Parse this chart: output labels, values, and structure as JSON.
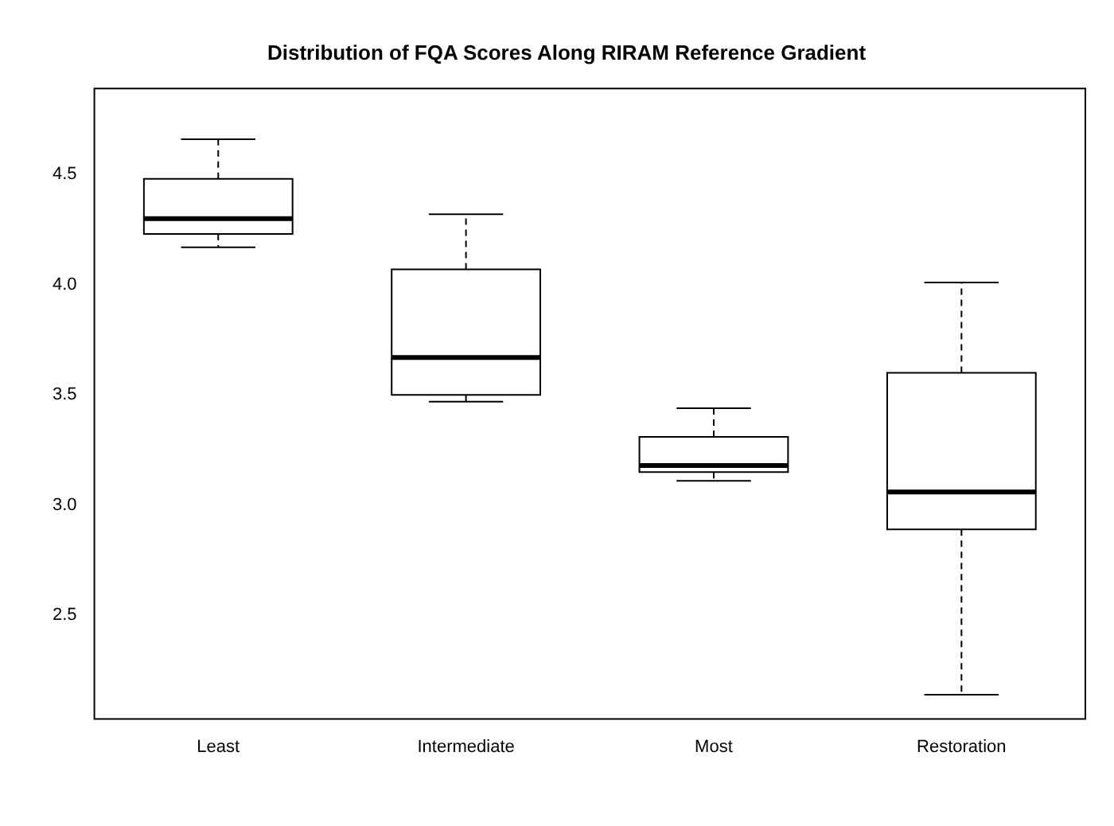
{
  "chart_data": {
    "type": "box",
    "title": "Distribution of FQA Scores Along RIRAM Reference Gradient",
    "categories": [
      "Least",
      "Intermediate",
      "Most",
      "Restoration"
    ],
    "boxes": [
      {
        "low": 4.17,
        "q1": 4.23,
        "median": 4.3,
        "q3": 4.48,
        "high": 4.66
      },
      {
        "low": 3.47,
        "q1": 3.5,
        "median": 3.67,
        "q3": 4.07,
        "high": 4.32
      },
      {
        "low": 3.11,
        "q1": 3.15,
        "median": 3.18,
        "q3": 3.31,
        "high": 3.44
      },
      {
        "low": 2.14,
        "q1": 2.89,
        "median": 3.06,
        "q3": 3.6,
        "high": 4.01
      }
    ],
    "ylim": [
      2.03,
      4.89
    ],
    "yticks": [
      2.5,
      {
        "value": 3,
        "label": "3.0"
      },
      3.5,
      {
        "value": 4,
        "label": "4.0"
      },
      4.5
    ],
    "grid": false,
    "legend": false
  }
}
